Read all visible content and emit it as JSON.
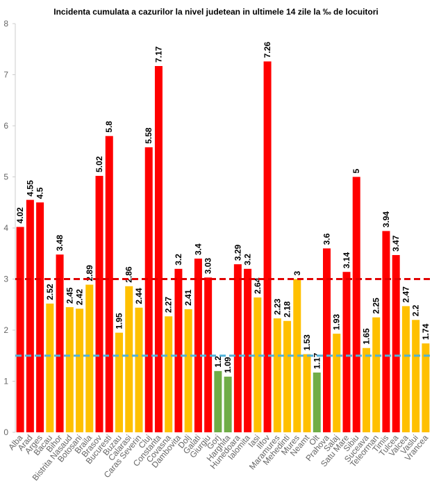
{
  "chart_data": {
    "type": "bar",
    "title": "Incidenta cumulata a cazurilor la nivel judetean in ultimele 14 zile la ‰ de locuitori",
    "categories": [
      "Alba",
      "Arad",
      "Arges",
      "Bacau",
      "Bihor",
      "Bistrita Nasaud",
      "Botosani",
      "Braila",
      "Brasov",
      "Bucuresti",
      "Buzau",
      "Calarasi",
      "Caras Severin",
      "Cluj",
      "Constanta",
      "Covasna",
      "Dambovita",
      "Dolj",
      "Galati",
      "Giurgiu",
      "Gorj",
      "Harghita",
      "Hunedoara",
      "Ialomita",
      "Iasi",
      "Ilfov",
      "Maramures",
      "Mehedinti",
      "Mures",
      "Neamt",
      "Olt",
      "Prahova",
      "Salaj",
      "Satu Mare",
      "Sibiu",
      "Suceava",
      "Teleorman",
      "Timis",
      "Tulcea",
      "Valcea",
      "Vaslui",
      "Vrancea"
    ],
    "values": [
      4.02,
      4.55,
      4.5,
      2.52,
      3.48,
      2.45,
      2.42,
      2.89,
      5.02,
      5.8,
      1.95,
      2.86,
      2.44,
      5.58,
      7.17,
      2.27,
      3.2,
      2.41,
      3.4,
      3.03,
      1.2,
      1.09,
      3.29,
      3.2,
      2.64,
      7.26,
      2.23,
      2.18,
      3,
      1.53,
      1.17,
      3.6,
      1.93,
      3.14,
      5,
      1.65,
      2.25,
      3.94,
      3.47,
      2.47,
      2.2,
      1.74
    ],
    "colors": [
      "#ff0000",
      "#ff0000",
      "#ff0000",
      "#ffc000",
      "#ff0000",
      "#ffc000",
      "#ffc000",
      "#ffc000",
      "#ff0000",
      "#ff0000",
      "#ffc000",
      "#ffc000",
      "#ffc000",
      "#ff0000",
      "#ff0000",
      "#ffc000",
      "#ff0000",
      "#ffc000",
      "#ff0000",
      "#ff0000",
      "#70ad47",
      "#70ad47",
      "#ff0000",
      "#ff0000",
      "#ffc000",
      "#ff0000",
      "#ffc000",
      "#ffc000",
      "#ffc000",
      "#ffc000",
      "#70ad47",
      "#ff0000",
      "#ffc000",
      "#ff0000",
      "#ff0000",
      "#ffc000",
      "#ffc000",
      "#ff0000",
      "#ff0000",
      "#ffc000",
      "#ffc000",
      "#ffc000"
    ],
    "reference_lines": [
      {
        "value": 3,
        "color": "#e00000"
      },
      {
        "value": 1.5,
        "color": "#4fb3d9"
      }
    ],
    "ylim": [
      0,
      8
    ],
    "yticks": [
      0,
      1,
      2,
      3,
      4,
      5,
      6,
      7,
      8
    ],
    "grid": false
  }
}
